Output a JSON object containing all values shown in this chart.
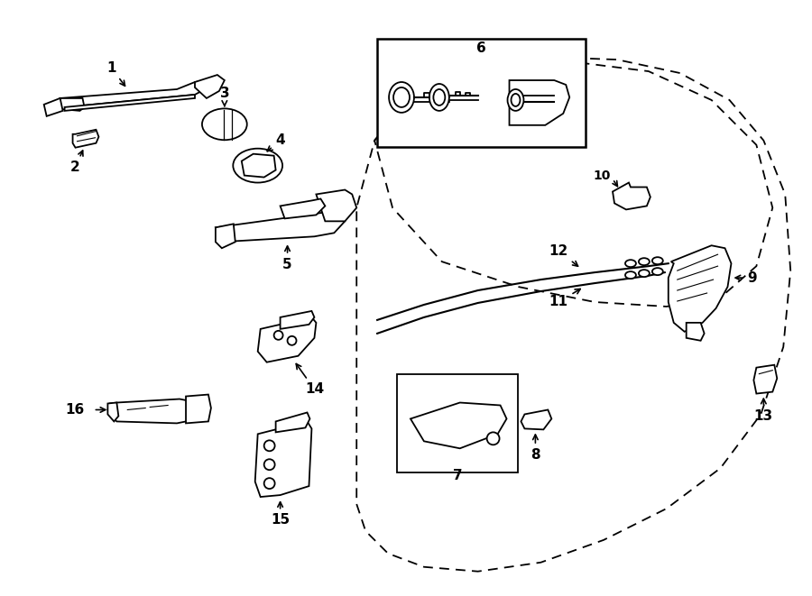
{
  "background_color": "#ffffff",
  "line_color": "#000000",
  "figure_width": 9.0,
  "figure_height": 6.61,
  "dpi": 100,
  "parts": {
    "door_outer": {
      "style": "dashed"
    },
    "door_inner": {
      "style": "dashed"
    }
  }
}
